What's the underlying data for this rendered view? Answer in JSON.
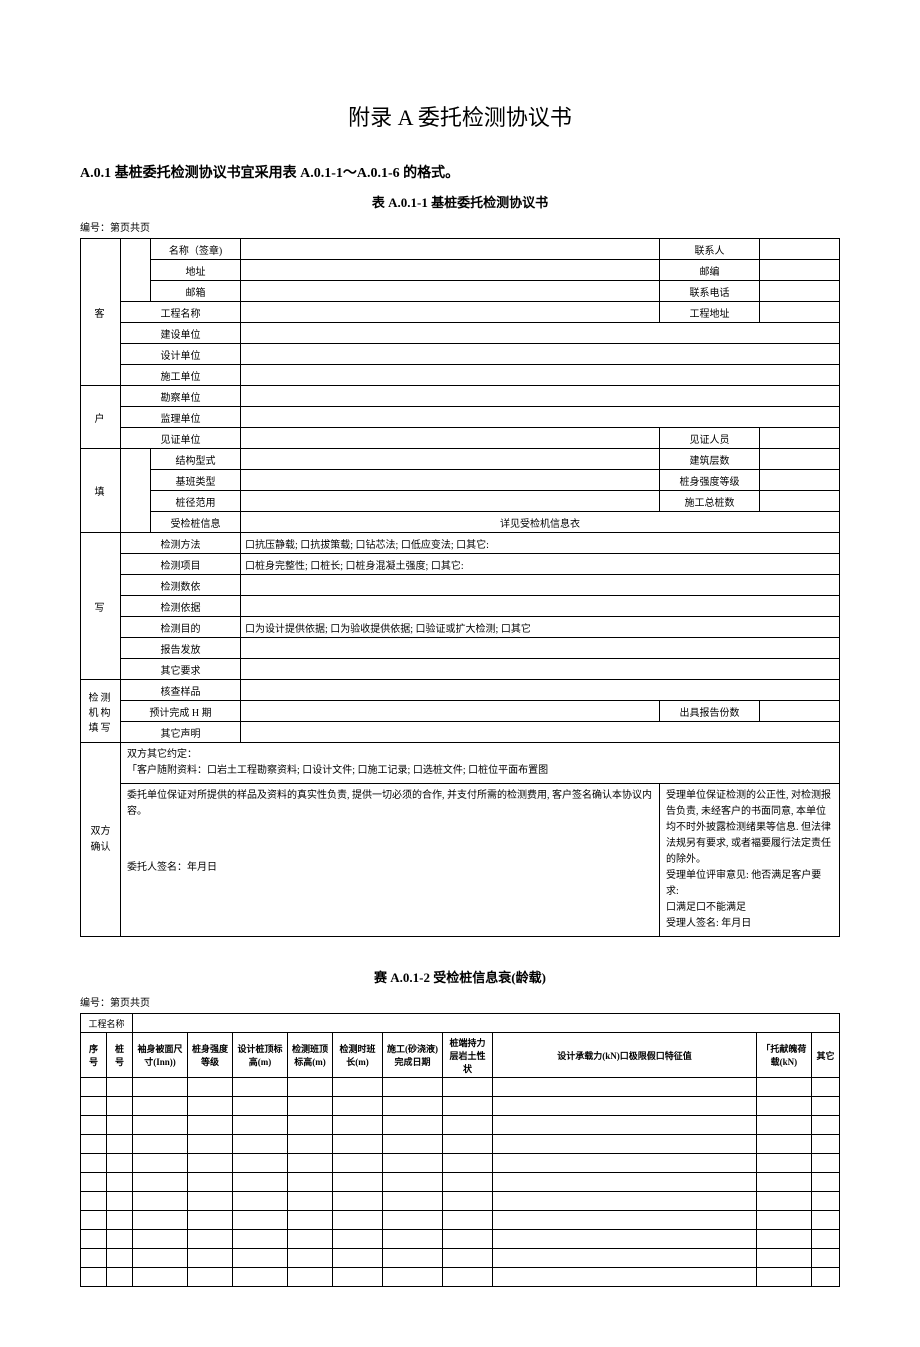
{
  "pageTitle": "附录 A 委托检测协议书",
  "intro": "A.0.1 基桩委托检测协议书宜采用表 A.0.1-1～A.0.1-6 的格式。",
  "table1": {
    "caption": "表 A.0.1-1 基桩委托检测协议书",
    "numbering": "编号：第页共页",
    "groups": {
      "customer": "客",
      "household": "户",
      "fill": "填",
      "write": "写",
      "testOrg": "检测机构填写",
      "confirm": "双方确认"
    },
    "rows": {
      "name": "名称（签章)",
      "contact": "联系人",
      "address": "地址",
      "postcode": "邮编",
      "email": "邮箱",
      "phone": "联系电话",
      "projName": "工程名称",
      "projAddr": "工程地址",
      "buildUnit": "建设单位",
      "designUnit": "设计单位",
      "constructUnit": "施工单位",
      "surveyUnit": "勘察单位",
      "superviseUnit": "监理单位",
      "witnessUnit": "见证单位",
      "witnessPerson": "见证人员",
      "structType": "结构型式",
      "floors": "建筑层数",
      "baseType": "基班类型",
      "pileStrength": "桩身强度等级",
      "pileFn": "桩径范用",
      "pileCount": "施工总桩数",
      "pileInfo": "受检桩信息",
      "pileInfoNote": "详见受检机信息衣",
      "testMethod": "检测方法",
      "testMethodOpt": "口抗压静载; 口抗拔策载; 口钻芯法; 口低应变法; 口其它:",
      "testItem": "检测项目",
      "testItemOpt": "口桩身完整性; 口桩长; 口桩身混凝土强度; 口其它:",
      "testQty": "检测数依",
      "testBasis": "检测依据",
      "testPurpose": "检测目的",
      "testPurposeOpt": "口为设计提供依据; 口为验收提供依据; 口验证或扩大检测; 口其它",
      "report": "报告发放",
      "otherReq": "其它要求",
      "checkSample": "核查样品",
      "expectH": "预计完成 H 期",
      "reportNum": "出具报告份数",
      "otherStmt": "其它声明"
    },
    "agreement": {
      "line1": "双方其它约定：",
      "line2": "「客户随附资料：口岩土工程勘察资料; 口设计文件; 口施工记录; 口选桩文件; 口桩位平面布置图",
      "leftBlock": "委托单位保证对所提供的样品及资料的真实性负责, 提供一切必须的合作, 并支付所需的检测费用, 客户签名确认本协议内容。",
      "leftSign": "委托人签名：年月日",
      "rightBlock": "受理单位保证检测的公正性, 对检测报告负责, 未经客户的书面同意, 本单位均不时外披露检测绪果等信息. 但法律法规另有要求, 或者褔要履行法定责任的除外。\n受理单位评审意见: 他否满足客户要求:\n     口满足口不能满足\n受理人签名: 年月日"
    }
  },
  "table2": {
    "caption": "赛 A.0.1-2 受检桩信息衰(龄载)",
    "numbering": "编号：第页共页",
    "headers": {
      "projName": "工程名称",
      "seq": "序号",
      "pileNo": "桩号",
      "sleeve": "袖身被面尺寸(Inn))",
      "strength": "桩身强度等级",
      "designTop": "设计桩顶标高(m)",
      "testTop": "检测班顶标高(m)",
      "testLen": "检测时班长(m)",
      "constrDate": "施工(砂浇液)完成日期",
      "endCond": "桩端持力层岩土性状",
      "designCap": "设计承载力(kN)口极限假口特征值",
      "entrustLoad": "「托献魄荷载(kN)",
      "other": "其它"
    },
    "emptyRows": 11
  }
}
